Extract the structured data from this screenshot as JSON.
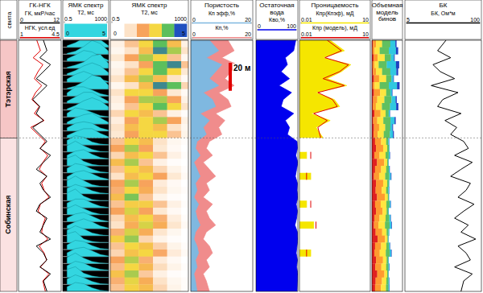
{
  "chart_data": {
    "type": "well_log",
    "depth_label": "20 м",
    "depth_scale_value": 20,
    "ylim": [
      0,
      180
    ],
    "depth": [
      2.5,
      7.5,
      12.5,
      17.5,
      22.5,
      27.5,
      32.5,
      37.5,
      42.5,
      47.5,
      52.5,
      57.5,
      62.5,
      67.5,
      72.5,
      77.5,
      82.5,
      87.5,
      92.5,
      97.5,
      102.5,
      107.5,
      112.5,
      117.5,
      122.5,
      127.5,
      132.5,
      137.5,
      142.5,
      147.5,
      152.5,
      157.5,
      162.5,
      167.5,
      172.5,
      177.5
    ],
    "formation_header": "свита",
    "formations": [
      {
        "name": "Тэтэрская",
        "top": 0,
        "bottom": 70
      },
      {
        "name": "Собинская",
        "top": 70,
        "bottom": 180
      }
    ],
    "t2_bins": [
      1,
      4,
      16,
      64,
      250,
      1000
    ],
    "nmr_spectrum": [
      [
        0.5,
        1.5,
        3,
        4,
        2.5,
        0.5
      ],
      [
        0.3,
        1,
        2.5,
        4.5,
        3.5,
        1
      ],
      [
        0.8,
        2,
        3.5,
        3,
        1.5,
        0.3
      ],
      [
        0.3,
        1,
        2,
        4,
        4.5,
        1.5
      ],
      [
        0.5,
        1.5,
        3,
        4,
        3,
        0.8
      ],
      [
        1,
        2.5,
        3.5,
        2.5,
        1,
        0.2
      ],
      [
        0.3,
        1,
        2.5,
        4.5,
        4,
        1.2
      ],
      [
        1,
        3,
        3,
        2,
        0.8,
        0.2
      ],
      [
        0.6,
        2,
        3.5,
        3.5,
        2,
        0.5
      ],
      [
        0.4,
        1.5,
        3,
        4,
        3,
        1
      ],
      [
        1.2,
        3,
        2.5,
        1.5,
        0.5,
        0.1
      ],
      [
        0.6,
        2,
        3,
        3.5,
        2,
        0.5
      ],
      [
        1,
        2.5,
        3,
        2.5,
        1,
        0.3
      ],
      [
        0.8,
        2,
        3,
        3,
        1.5,
        0.4
      ],
      [
        1.5,
        3,
        2.5,
        1,
        0.3,
        0.1
      ],
      [
        2,
        3.5,
        2,
        0.8,
        0.2,
        0
      ],
      [
        1.2,
        2.5,
        3,
        1.5,
        0.5,
        0.1
      ],
      [
        2.5,
        3.5,
        1.5,
        0.5,
        0.1,
        0
      ],
      [
        1.5,
        3,
        2.5,
        1.2,
        0.4,
        0.1
      ],
      [
        1,
        2.5,
        3,
        2,
        0.8,
        0.2
      ],
      [
        2,
        3.5,
        2,
        0.7,
        0.2,
        0
      ],
      [
        1.8,
        3,
        2.2,
        1,
        0.3,
        0.1
      ],
      [
        2.5,
        3.8,
        1.5,
        0.4,
        0.1,
        0
      ],
      [
        1.5,
        2.8,
        2.8,
        1.5,
        0.5,
        0.1
      ],
      [
        2,
        3.2,
        2,
        0.8,
        0.2,
        0
      ],
      [
        1.2,
        2.5,
        3,
        1.8,
        0.6,
        0.1
      ],
      [
        1,
        2.2,
        3.2,
        2.2,
        0.9,
        0.2
      ],
      [
        1.8,
        3.2,
        2.2,
        0.9,
        0.3,
        0
      ],
      [
        2.8,
        3.6,
        1.2,
        0.4,
        0.1,
        0
      ],
      [
        1.5,
        3,
        2.6,
        1.3,
        0.4,
        0.1
      ],
      [
        1.2,
        2.6,
        3,
        1.9,
        0.7,
        0.2
      ],
      [
        2,
        3.4,
        1.8,
        0.7,
        0.2,
        0
      ],
      [
        1.6,
        3,
        2.4,
        1.1,
        0.4,
        0.1
      ],
      [
        2.6,
        3.5,
        1.4,
        0.5,
        0.1,
        0
      ],
      [
        1.8,
        3.1,
        2.2,
        1,
        0.3,
        0.1
      ],
      [
        1.5,
        2.9,
        2.5,
        1.2,
        0.4,
        0.1
      ]
    ],
    "tracks": [
      {
        "title": "ГК-НГК",
        "type": "curves",
        "series": [
          {
            "name": "ГК, мкР/час",
            "type": "line",
            "color": "#000000",
            "xlim": [
              0,
              12
            ],
            "xticks": [
              0,
              12
            ],
            "values": [
              7,
              8,
              6,
              9,
              7,
              5,
              8,
              6,
              4,
              6,
              5,
              7,
              4,
              6,
              8,
              6,
              9,
              7,
              5,
              8,
              6,
              7,
              9,
              6,
              5,
              8,
              7,
              6,
              9,
              5,
              7,
              8,
              6,
              9,
              7,
              8
            ]
          },
          {
            "name": "НГК, усл.ед",
            "type": "line",
            "color": "#e00000",
            "xlim": [
              1,
              4.5
            ],
            "xticks": [
              1,
              4.5
            ],
            "values": [
              2.5,
              2.8,
              2.2,
              3.0,
              2.6,
              2.3,
              2.9,
              2.4,
              2.1,
              2.7,
              2.3,
              3.1,
              2.0,
              2.6,
              3.2,
              2.8,
              3.4,
              3.0,
              2.7,
              3.3,
              2.9,
              3.1,
              3.5,
              2.8,
              2.6,
              3.2,
              3.0,
              2.9,
              3.4,
              2.7,
              3.1,
              3.3,
              2.8,
              3.5,
              3.0,
              3.2
            ]
          }
        ]
      },
      {
        "title": "ЯМК спектр",
        "type": "spectrum_wiggle",
        "x_label": "T2, мс",
        "log": "x",
        "xlim": [
          0.5,
          1000
        ],
        "xticks": [
          0.5,
          1000
        ],
        "amp_lim": [
          0,
          5
        ],
        "amp_ticks": [
          0,
          5
        ],
        "color": "#33d6e0"
      },
      {
        "title": "ЯМК спектр",
        "type": "spectrum_image",
        "x_label": "T2, мс",
        "log": "x",
        "xlim": [
          0.5,
          1000
        ],
        "xticks": [
          0.5,
          1000
        ],
        "amp_lim": [
          0,
          5
        ],
        "amp_ticks": [
          0,
          5
        ],
        "colors": [
          "#ffffff",
          "#fde3c8",
          "#f7a35c",
          "#f5d742",
          "#5cbf5c",
          "#2050c0"
        ]
      },
      {
        "title": "Пористость",
        "type": "curves",
        "series": [
          {
            "name": "Кп эфф,%",
            "type": "area",
            "color": "#7fb8e0",
            "xlim": [
              0,
              20
            ],
            "xticks": [
              0,
              20
            ],
            "values": [
              6,
              9,
              5,
              10,
              8,
              6,
              9,
              4,
              7,
              8,
              3,
              6,
              4,
              5,
              2,
              1.5,
              3,
              1,
              2,
              3,
              1.5,
              2,
              1,
              2.5,
              1.5,
              2,
              3,
              1.5,
              1,
              2,
              2.5,
              1.5,
              2,
              1,
              1.5,
              2
            ]
          },
          {
            "name": "Кп,%",
            "type": "area",
            "color": "#f08c8c",
            "xlim": [
              0,
              20
            ],
            "xticks": [
              0,
              20
            ],
            "values": [
              12,
              14,
              10,
              15,
              13,
              11,
              14,
              9,
              12,
              13,
              8,
              11,
              9,
              10,
              6,
              5,
              7,
              4,
              6,
              8,
              5,
              6,
              4,
              7,
              5,
              6,
              8,
              5,
              4,
              6,
              7,
              5,
              6,
              4,
              5,
              6
            ]
          }
        ]
      },
      {
        "title": "Остаточная вода",
        "type": "curves",
        "series": [
          {
            "name": "Кво,%",
            "type": "area",
            "color": "#0000ee",
            "xlim": [
              0,
              100
            ],
            "xticks": [
              0,
              100
            ],
            "values": [
              95,
              90,
              70,
              75,
              60,
              80,
              55,
              85,
              65,
              60,
              90,
              70,
              80,
              75,
              98,
              99,
              95,
              100,
              97,
              94,
              99,
              98,
              100,
              96,
              99,
              97,
              93,
              99,
              100,
              98,
              96,
              99,
              97,
              100,
              99,
              98
            ]
          }
        ]
      },
      {
        "title": "Проницаемость",
        "type": "curves",
        "log": "x",
        "series": [
          {
            "name": "Кпр(Кпэф), мД",
            "type": "area",
            "color": "#f5e600",
            "xlim": [
              0.01,
              10
            ],
            "xticks": [
              0.01,
              10
            ],
            "values": [
              0.2,
              0.8,
              0.1,
              1.5,
              0.6,
              0.15,
              1.0,
              0.05,
              0.3,
              0.5,
              0.03,
              0.2,
              0.05,
              0.1,
              null,
              null,
              0.02,
              null,
              null,
              0.03,
              null,
              null,
              null,
              0.02,
              null,
              null,
              0.04,
              null,
              null,
              null,
              0.03,
              null,
              null,
              null,
              null,
              null
            ]
          },
          {
            "name": "Кпр (модель), мД",
            "type": "line",
            "color": "#e00000",
            "xlim": [
              0.01,
              10
            ],
            "xticks": [
              0.01,
              10
            ],
            "values": [
              0.15,
              0.6,
              0.12,
              1.2,
              0.5,
              0.1,
              0.8,
              0.06,
              0.25,
              0.4,
              0.04,
              0.15,
              0.06,
              0.08,
              null,
              null,
              0.03,
              null,
              null,
              0.02,
              null,
              null,
              null,
              0.03,
              null,
              null,
              0.05,
              null,
              null,
              null,
              0.02,
              null,
              null,
              null,
              null,
              null
            ]
          }
        ]
      },
      {
        "title": "Объемная модель бинов",
        "type": "bins_stack",
        "xlim": [
          0,
          15
        ],
        "colors": [
          "#e02020",
          "#ff9a30",
          "#ffe640",
          "#60c060",
          "#30c8e0",
          "#2040c0"
        ]
      },
      {
        "title": "БК",
        "type": "curves",
        "log": "x",
        "series": [
          {
            "name": "БК, Ом*м",
            "type": "line",
            "color": "#000000",
            "xlim": [
              5,
              100
            ],
            "xticks": [
              5,
              100
            ],
            "values": [
              25,
              18,
              30,
              15,
              20,
              35,
              14,
              40,
              22,
              18,
              45,
              24,
              38,
              30,
              50,
              60,
              35,
              70,
              45,
              30,
              65,
              55,
              40,
              75,
              50,
              35,
              60,
              45,
              80,
              40,
              55,
              65,
              35,
              70,
              50,
              45
            ]
          }
        ]
      }
    ]
  }
}
